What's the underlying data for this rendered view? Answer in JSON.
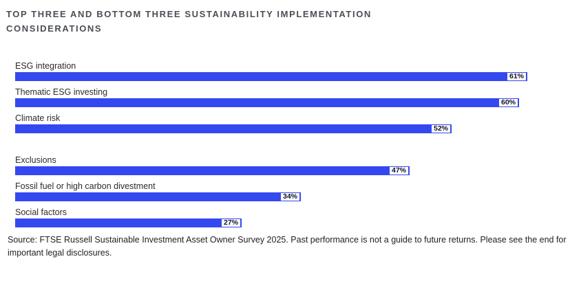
{
  "title": "TOP THREE AND BOTTOM THREE SUSTAINABILITY IMPLEMENTATION CONSIDERATIONS",
  "source_note": "Source: FTSE Russell Sustainable Investment Asset Owner Survey 2025. Past performance is not a guide to future returns. Please see the end for important legal disclosures.",
  "colors": {
    "bar": "#3448f0",
    "title_text": "#4a4e55",
    "label_text": "#2b2b2b",
    "value_chip_bg": "#ffffff",
    "value_chip_text": "#10102a"
  },
  "chart_data": {
    "type": "bar",
    "orientation": "horizontal",
    "title": "TOP THREE AND BOTTOM THREE SUSTAINABILITY IMPLEMENTATION CONSIDERATIONS",
    "categories": [
      "ESG integration",
      "Thematic ESG investing",
      "Climate risk",
      "Exclusions",
      "Fossil fuel or high carbon divestment",
      "Social factors"
    ],
    "values": [
      61,
      60,
      52,
      47,
      34,
      27
    ],
    "value_labels": [
      "61%",
      "60%",
      "52%",
      "47%",
      "34%",
      "27%"
    ],
    "groups": [
      {
        "name": "top three",
        "indices": [
          0,
          1,
          2
        ]
      },
      {
        "name": "bottom three",
        "indices": [
          3,
          4,
          5
        ]
      }
    ],
    "xlabel": "",
    "ylabel": "",
    "xlim": [
      0,
      64.3
    ],
    "grid": false,
    "legend": false,
    "value_labels_position": "inside-end"
  }
}
